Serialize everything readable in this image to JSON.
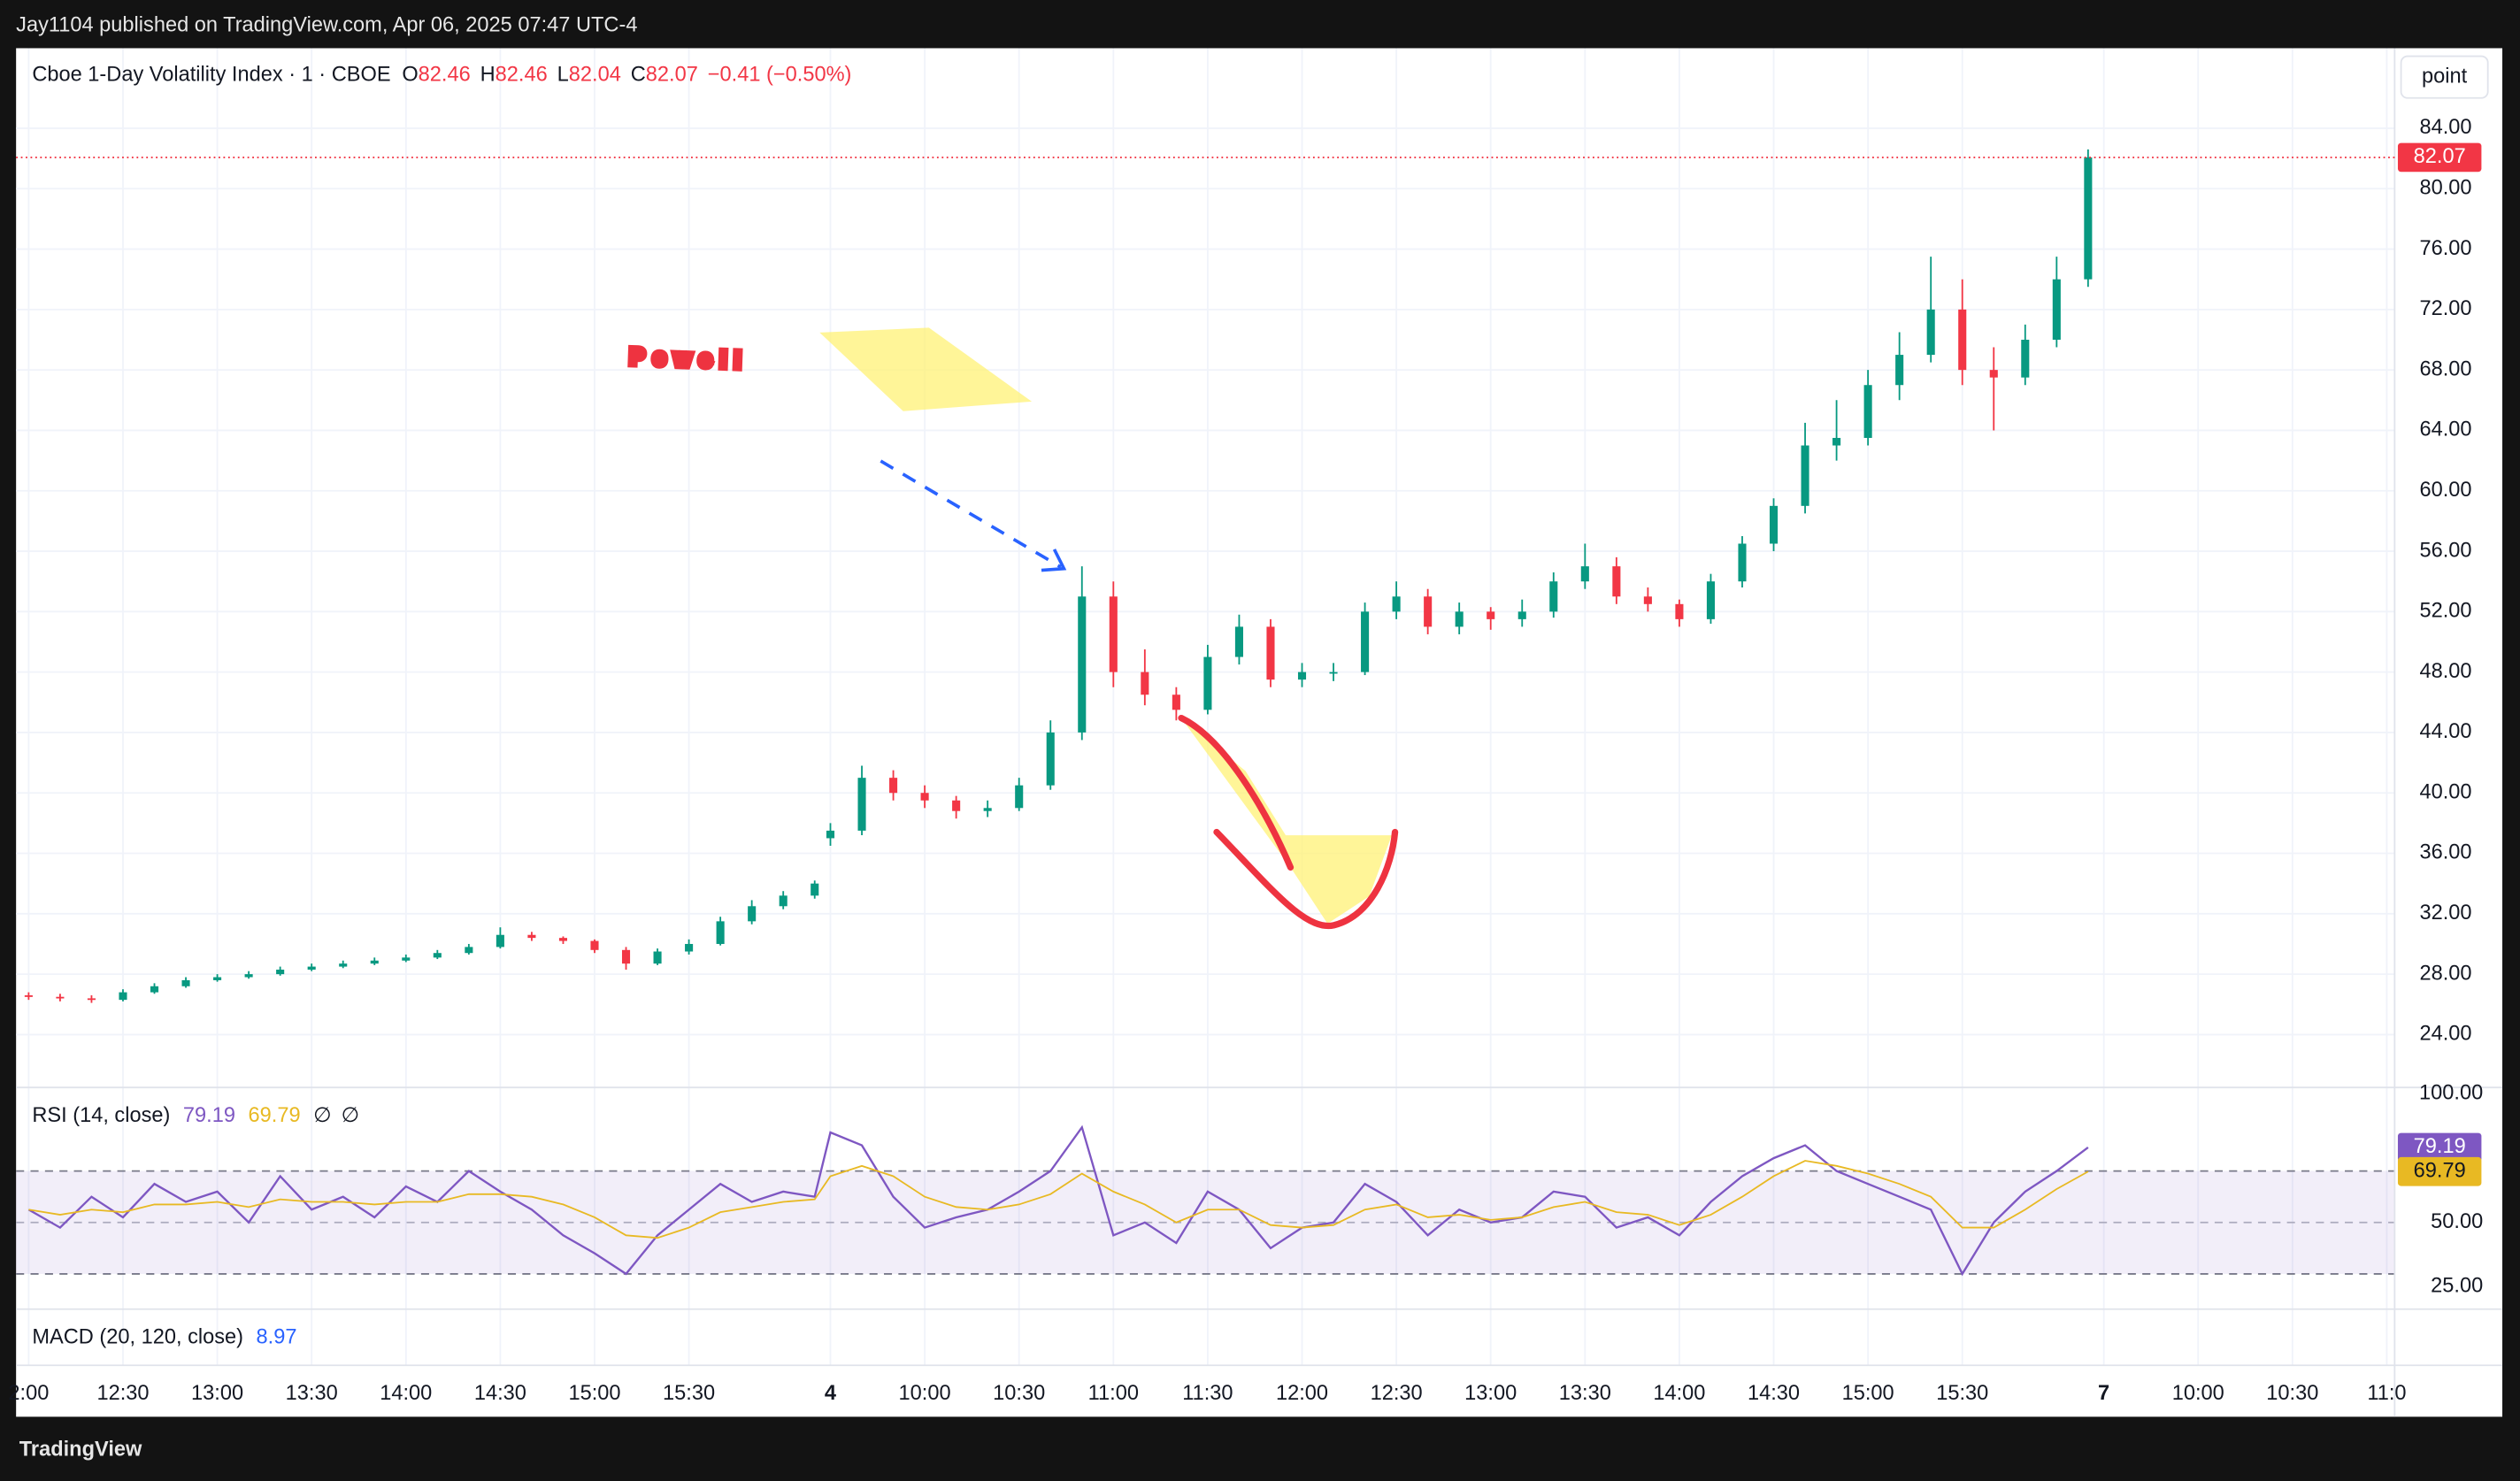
{
  "header": {
    "publisher": "Jay1104 published on TradingView.com, Apr 06, 2025 07:47 UTC-4",
    "brand": "TradingView"
  },
  "chart_data": [
    {
      "type": "candlestick",
      "title": "Cboe 1-Day Volatility Index · 1 · CBOE",
      "legend": {
        "o_label": "O",
        "open": 82.46,
        "h_label": "H",
        "high": 82.46,
        "l_label": "L",
        "low": 82.04,
        "c_label": "C",
        "close": 82.07,
        "change": "−0.41 (−0.50%)"
      },
      "unit_button": "point",
      "annotations": [
        "Powell"
      ],
      "up_color": "#089981",
      "down_color": "#f23645",
      "x": [
        0,
        2,
        4,
        6,
        8,
        10,
        12,
        14,
        16,
        18,
        20,
        22,
        24,
        26,
        28,
        30,
        32,
        34,
        36,
        38,
        40,
        42,
        44,
        46,
        48,
        50,
        51,
        53,
        55,
        57,
        59,
        61,
        63,
        65,
        67,
        69,
        71,
        73,
        75,
        77,
        79,
        81,
        83,
        85,
        87,
        89,
        91,
        93,
        95,
        97,
        99,
        101,
        103,
        105,
        107,
        109,
        111,
        113,
        115,
        117,
        119,
        121,
        123,
        125,
        127,
        129,
        131
      ],
      "open": [
        26.6,
        26.5,
        26.4,
        26.3,
        26.8,
        27.2,
        27.6,
        27.8,
        28.0,
        28.3,
        28.5,
        28.7,
        28.9,
        29.1,
        29.4,
        29.8,
        30.6,
        30.4,
        30.2,
        29.6,
        28.7,
        29.5,
        30.0,
        31.5,
        32.5,
        33.2,
        37.0,
        37.5,
        41,
        40,
        39.5,
        38.8,
        39,
        40.5,
        44,
        53,
        48,
        46.5,
        45.5,
        49,
        51,
        47.5,
        48,
        48,
        52,
        53,
        51,
        52,
        51.5,
        52,
        54,
        55,
        53,
        52.5,
        51.5,
        54,
        56.5,
        59,
        63,
        63.5,
        67,
        69,
        72,
        68,
        67.5,
        70,
        74
      ],
      "high": [
        26.8,
        26.7,
        26.6,
        27.0,
        27.4,
        27.8,
        28.0,
        28.2,
        28.5,
        28.7,
        28.9,
        29.1,
        29.3,
        29.6,
        30.0,
        31.1,
        30.8,
        30.5,
        30.3,
        29.8,
        29.7,
        30.3,
        31.8,
        32.9,
        33.5,
        34.2,
        38,
        41.8,
        41.5,
        40.5,
        39.8,
        39.5,
        41,
        44.8,
        55,
        54,
        49.5,
        47,
        49.8,
        51.8,
        51.5,
        48.6,
        48.6,
        52.6,
        54,
        53.5,
        52.6,
        52.3,
        52.8,
        54.6,
        56.5,
        55.6,
        53.6,
        52.8,
        54.5,
        57,
        59.5,
        64.5,
        66,
        68,
        70.5,
        75.5,
        74,
        69.5,
        71,
        75.5,
        82.6
      ],
      "low": [
        26.3,
        26.2,
        26.1,
        26.2,
        26.7,
        27.1,
        27.5,
        27.7,
        27.9,
        28.2,
        28.4,
        28.6,
        28.8,
        29.0,
        29.3,
        29.7,
        30.2,
        30.0,
        29.4,
        28.3,
        28.6,
        29.3,
        29.9,
        31.3,
        32.3,
        33.0,
        36.5,
        37.2,
        39.5,
        39,
        38.3,
        38.4,
        38.8,
        40.2,
        43.5,
        47,
        45.8,
        44.8,
        45.2,
        48.5,
        47,
        47,
        47.4,
        47.8,
        51.5,
        50.5,
        50.5,
        50.8,
        51,
        51.6,
        53.5,
        52.5,
        52,
        51,
        51.2,
        53.6,
        56,
        58.5,
        62,
        63,
        66,
        68.5,
        67,
        64,
        67,
        69.5,
        73.5
      ],
      "close": [
        26.5,
        26.4,
        26.3,
        26.8,
        27.2,
        27.6,
        27.8,
        28.0,
        28.3,
        28.5,
        28.7,
        28.9,
        29.1,
        29.4,
        29.8,
        30.6,
        30.4,
        30.2,
        29.6,
        28.7,
        29.5,
        30.0,
        31.5,
        32.5,
        33.2,
        34.0,
        37.5,
        41,
        40,
        39.5,
        38.8,
        39,
        40.5,
        44,
        53,
        48,
        46.5,
        45.5,
        49,
        51,
        47.5,
        48,
        48,
        52,
        53,
        51,
        52,
        51.5,
        52,
        54,
        55,
        53,
        52.5,
        51.5,
        54,
        56.5,
        59,
        63,
        63.5,
        67,
        69,
        72,
        68,
        67.5,
        70,
        74,
        82.07
      ],
      "xlim": [
        -0.8,
        150.5
      ],
      "xticks": [
        {
          "value": 0,
          "label": "2:00"
        },
        {
          "value": 6,
          "label": "12:30"
        },
        {
          "value": 12,
          "label": "13:00"
        },
        {
          "value": 18,
          "label": "13:30"
        },
        {
          "value": 24,
          "label": "14:00"
        },
        {
          "value": 30,
          "label": "14:30"
        },
        {
          "value": 36,
          "label": "15:00"
        },
        {
          "value": 42,
          "label": "15:30"
        },
        {
          "value": 51,
          "label": "4"
        },
        {
          "value": 57,
          "label": "10:00"
        },
        {
          "value": 63,
          "label": "10:30"
        },
        {
          "value": 69,
          "label": "11:00"
        },
        {
          "value": 75,
          "label": "11:30"
        },
        {
          "value": 81,
          "label": "12:00"
        },
        {
          "value": 87,
          "label": "12:30"
        },
        {
          "value": 93,
          "label": "13:00"
        },
        {
          "value": 99,
          "label": "13:30"
        },
        {
          "value": 105,
          "label": "14:00"
        },
        {
          "value": 111,
          "label": "14:30"
        },
        {
          "value": 117,
          "label": "15:00"
        },
        {
          "value": 123,
          "label": "15:30"
        },
        {
          "value": 132,
          "label": "7"
        },
        {
          "value": 138,
          "label": "10:00"
        },
        {
          "value": 144,
          "label": "10:30"
        },
        {
          "value": 150,
          "label": "11:0"
        }
      ],
      "ylim": [
        20.5,
        89.3
      ],
      "yticks": [
        {
          "value": 24,
          "label": "24.00"
        },
        {
          "value": 28,
          "label": "28.00"
        },
        {
          "value": 32,
          "label": "32.00"
        },
        {
          "value": 36,
          "label": "36.00"
        },
        {
          "value": 40,
          "label": "40.00"
        },
        {
          "value": 44,
          "label": "44.00"
        },
        {
          "value": 48,
          "label": "48.00"
        },
        {
          "value": 52,
          "label": "52.00"
        },
        {
          "value": 56,
          "label": "56.00"
        },
        {
          "value": 60,
          "label": "60.00"
        },
        {
          "value": 64,
          "label": "64.00"
        },
        {
          "value": 68,
          "label": "68.00"
        },
        {
          "value": 72,
          "label": "72.00"
        },
        {
          "value": 76,
          "label": "76.00"
        },
        {
          "value": 80,
          "label": "80.00"
        },
        {
          "value": 84,
          "label": "84.00"
        }
      ],
      "grid": true
    },
    {
      "type": "line",
      "title": "RSI (14, close)",
      "flags": [
        "∅",
        "∅"
      ],
      "series": [
        {
          "color": "#7e57c2",
          "values": [
            55,
            48,
            60,
            52,
            65,
            58,
            62,
            50,
            68,
            55,
            60,
            52,
            64,
            58,
            70,
            62,
            55,
            45,
            38,
            30,
            45,
            55,
            65,
            58,
            62,
            60,
            85,
            80,
            60,
            48,
            52,
            55,
            62,
            70,
            87,
            45,
            50,
            42,
            62,
            55,
            40,
            48,
            50,
            65,
            58,
            45,
            55,
            50,
            52,
            62,
            60,
            48,
            52,
            45,
            58,
            68,
            75,
            80,
            70,
            65,
            60,
            55,
            30,
            50,
            62,
            70,
            79.19
          ]
        },
        {
          "color": "#e8b923",
          "values": [
            55,
            53,
            55,
            54,
            57,
            57,
            58,
            56,
            59,
            58,
            58,
            57,
            58,
            58,
            61,
            61,
            60,
            57,
            52,
            45,
            44,
            48,
            54,
            56,
            58,
            59,
            68,
            72,
            68,
            60,
            56,
            55,
            57,
            61,
            69,
            62,
            57,
            50,
            55,
            55,
            49,
            48,
            49,
            55,
            57,
            52,
            53,
            51,
            52,
            56,
            58,
            54,
            53,
            49,
            53,
            60,
            68,
            74,
            72,
            69,
            65,
            60,
            48,
            48,
            55,
            63,
            69.79
          ]
        }
      ],
      "bands": [
        30,
        50,
        70
      ],
      "ylim": [
        16.3,
        102.5
      ],
      "yticks": [
        {
          "value": 25,
          "label": "25.00"
        },
        {
          "value": 50,
          "label": "50.00"
        },
        {
          "value": 100,
          "label": "100.00"
        }
      ]
    },
    {
      "type": "indicator",
      "title": "MACD (20, 120, close)",
      "value": 8.97,
      "color": "#2962ff"
    }
  ]
}
